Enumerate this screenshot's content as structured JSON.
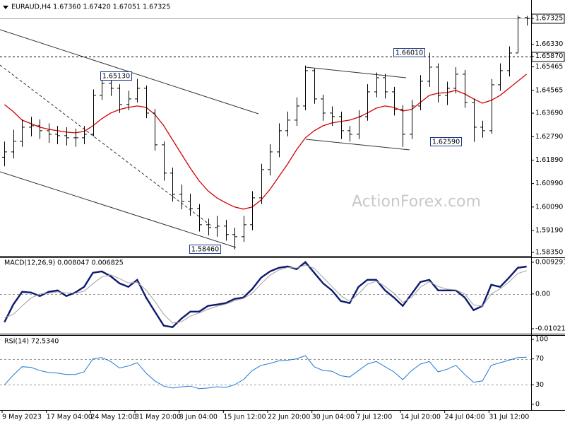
{
  "chart_data": [
    {
      "type": "ohlc",
      "title": "EURAUD,H4  1.67360 1.67420 1.67051 1.67325",
      "watermark": "ActionForex.com",
      "categories": [
        "9 May 2023",
        null,
        null,
        null,
        null,
        "17 May 04:00",
        null,
        null,
        null,
        null,
        "24 May 12:00",
        null,
        null,
        null,
        null,
        "31 May 20:00",
        null,
        null,
        null,
        null,
        "8 Jun 04:00",
        null,
        null,
        null,
        null,
        "15 Jun 12:00",
        null,
        null,
        null,
        null,
        "22 Jun 20:00",
        null,
        null,
        null,
        null,
        "30 Jun 04:00",
        null,
        null,
        null,
        null,
        "7 Jul 12:00",
        null,
        null,
        null,
        null,
        "14 Jul 20:00",
        null,
        null,
        null,
        null,
        "24 Jul 04:00",
        null,
        null,
        null,
        null,
        "31 Jul 12:00",
        null,
        null,
        null,
        null
      ],
      "open": [
        1.62,
        1.62204,
        1.6261,
        1.63152,
        1.63206,
        1.63017,
        1.62881,
        1.62827,
        1.62746,
        1.62746,
        1.62881,
        1.64372,
        1.64832,
        1.64643,
        1.64019,
        1.64236,
        1.64643,
        1.63694,
        1.62475,
        1.61391,
        1.60578,
        1.60307,
        1.60036,
        1.59412,
        1.59304,
        1.59358,
        1.59033,
        1.58952,
        1.59412,
        1.60442,
        1.61526,
        1.62204,
        1.63017,
        1.63423,
        1.63965,
        1.6532,
        1.64236,
        1.63694,
        1.63559,
        1.63017,
        1.62881,
        1.63559,
        1.64507,
        1.65049,
        1.64507,
        1.6383,
        1.62881,
        1.63965,
        1.64914,
        1.65456,
        1.64372,
        1.64643,
        1.65185,
        1.64101,
        1.63152,
        1.63017,
        1.64778,
        1.6532,
        1.65998,
        1.6736
      ],
      "high": [
        1.626,
        1.6305,
        1.6345,
        1.6355,
        1.6345,
        1.633,
        1.632,
        1.6315,
        1.631,
        1.632,
        1.646,
        1.6513,
        1.6505,
        1.648,
        1.6455,
        1.65,
        1.6475,
        1.6385,
        1.626,
        1.616,
        1.6095,
        1.606,
        1.602,
        1.5965,
        1.5975,
        1.596,
        1.593,
        1.5975,
        1.607,
        1.6175,
        1.625,
        1.633,
        1.6375,
        1.643,
        1.6552,
        1.654,
        1.644,
        1.6395,
        1.6375,
        1.632,
        1.638,
        1.648,
        1.6525,
        1.652,
        1.647,
        1.64,
        1.642,
        1.6515,
        1.6601,
        1.656,
        1.649,
        1.6545,
        1.6535,
        1.6425,
        1.634,
        1.65,
        1.656,
        1.6625,
        1.6744,
        1.6742
      ],
      "low": [
        1.6165,
        1.6195,
        1.624,
        1.628,
        1.627,
        1.6255,
        1.625,
        1.6245,
        1.624,
        1.625,
        1.628,
        1.642,
        1.6435,
        1.637,
        1.638,
        1.641,
        1.635,
        1.6225,
        1.611,
        1.603,
        1.6,
        1.5975,
        1.5915,
        1.59,
        1.5895,
        1.588,
        1.5846,
        1.5875,
        1.592,
        1.602,
        1.613,
        1.62,
        1.628,
        1.632,
        1.638,
        1.6405,
        1.634,
        1.632,
        1.627,
        1.626,
        1.627,
        1.634,
        1.643,
        1.6425,
        1.636,
        1.624,
        1.627,
        1.638,
        1.647,
        1.641,
        1.64,
        1.6445,
        1.639,
        1.6259,
        1.6275,
        1.629,
        1.6455,
        1.651,
        1.66,
        1.67051
      ],
      "close": [
        1.62204,
        1.6261,
        1.63152,
        1.63206,
        1.63017,
        1.62881,
        1.62827,
        1.62746,
        1.62746,
        1.62881,
        1.64372,
        1.64832,
        1.64643,
        1.64019,
        1.64236,
        1.64643,
        1.63694,
        1.62475,
        1.61391,
        1.60578,
        1.60307,
        1.60036,
        1.59412,
        1.59304,
        1.59358,
        1.59033,
        1.58952,
        1.59412,
        1.60442,
        1.61526,
        1.62204,
        1.63017,
        1.63423,
        1.63965,
        1.6532,
        1.64236,
        1.63694,
        1.63559,
        1.63017,
        1.62881,
        1.63559,
        1.64507,
        1.65049,
        1.64507,
        1.6383,
        1.62881,
        1.63965,
        1.64914,
        1.65456,
        1.64372,
        1.64643,
        1.65185,
        1.64101,
        1.63152,
        1.63017,
        1.64778,
        1.6532,
        1.65998,
        1.6736,
        1.67325
      ],
      "color": "#000000",
      "moving_average": {
        "color": "#d40000",
        "values": [
          1.64019,
          1.63748,
          1.63423,
          1.63288,
          1.63152,
          1.63071,
          1.63017,
          1.62963,
          1.62936,
          1.62989,
          1.63206,
          1.63477,
          1.63694,
          1.6383,
          1.63911,
          1.63965,
          1.63911,
          1.6364,
          1.63206,
          1.62664,
          1.62122,
          1.6158,
          1.61092,
          1.60713,
          1.60442,
          1.60253,
          1.6009,
          1.60009,
          1.6009,
          1.60361,
          1.60767,
          1.61255,
          1.61743,
          1.62285,
          1.62746,
          1.63017,
          1.63206,
          1.63315,
          1.63369,
          1.63423,
          1.63532,
          1.63694,
          1.63883,
          1.63965,
          1.63911,
          1.63776,
          1.6383,
          1.64101,
          1.64372,
          1.64453,
          1.6448,
          1.64561,
          1.64426,
          1.64236,
          1.64074,
          1.64182,
          1.64372,
          1.64643,
          1.64914,
          1.65185
        ]
      },
      "annotations": [
        "1.65130",
        "1.58460",
        "1.66010",
        "1.62590"
      ],
      "ylim": [
        1.58215,
        1.6803
      ],
      "yticks": [
        1.67325,
        {
          "value": 1.6633,
          "label": "1.66330"
        },
        {
          "value": 1.6587,
          "label": "1.65870"
        },
        1.65465,
        1.64565,
        {
          "value": 1.6369,
          "label": "1.63690"
        },
        {
          "value": 1.6279,
          "label": "1.62790"
        },
        {
          "value": 1.6189,
          "label": "1.61890"
        },
        {
          "value": 1.6099,
          "label": "1.60990"
        },
        {
          "value": 1.6009,
          "label": "1.60090"
        },
        {
          "value": 1.5919,
          "label": "1.59190"
        },
        {
          "value": 1.5835,
          "label": "1.58350"
        }
      ],
      "price_lines": [
        {
          "value": 1.67325,
          "style": "solid"
        },
        {
          "value": 1.6587,
          "style": "dashed"
        }
      ]
    },
    {
      "type": "line",
      "title": "MACD(12,26,9) 0.008047 0.006825",
      "series": [
        {
          "color": "#0d1a6e",
          "values": [
            -0.00828,
            -0.00311,
            0.00062,
            0.00041,
            -0.00062,
            0.00062,
            0.00104,
            -0.00062,
            0.00041,
            0.00207,
            0.00621,
            0.00662,
            0.00518,
            0.00311,
            0.00207,
            0.00414,
            -0.00104,
            -0.00518,
            -0.00932,
            -0.00973,
            -0.00725,
            -0.00518,
            -0.00518,
            -0.00352,
            -0.00311,
            -0.00269,
            -0.00145,
            -0.00104,
            0.00145,
            0.00476,
            0.00662,
            0.00766,
            0.00807,
            0.00725,
            0.00932,
            0.00621,
            0.00311,
            0.00104,
            -0.00207,
            -0.00269,
            0.00207,
            0.00414,
            0.00414,
            0.00104,
            -0.00104,
            -0.00352,
            0,
            0.00352,
            0.00414,
            0.00104,
            0.00104,
            0.00104,
            -0.00104,
            -0.00476,
            -0.00352,
            0.00269,
            0.00207,
            0.00476,
            0.00766,
            0.008047
          ]
        },
        {
          "color": "#a0a0a0",
          "values": [
            -0.007,
            -0.006,
            -0.0035,
            -0.0012,
            0,
            0.0002,
            0.0006,
            0.0003,
            0.0002,
            0.0008,
            0.003,
            0.005,
            0.0056,
            0.0045,
            0.0032,
            0.0034,
            0.0012,
            -0.0022,
            -0.006,
            -0.0085,
            -0.0082,
            -0.0065,
            -0.0056,
            -0.0045,
            -0.0036,
            -0.003,
            -0.002,
            -0.0013,
            0.0002,
            0.003,
            0.0055,
            0.007,
            0.0078,
            0.0076,
            0.0085,
            0.0075,
            0.0048,
            0.0022,
            -0.0005,
            -0.0022,
            0,
            0.0028,
            0.0038,
            0.0022,
            0.0002,
            -0.0025,
            -0.001,
            0.002,
            0.0036,
            0.0022,
            0.0014,
            0.0012,
            0,
            -0.0032,
            -0.0036,
            0,
            0.0015,
            0.0035,
            0.006,
            0.006825
          ]
        }
      ],
      "ylim": [
        -0.01166,
        0.01053
      ],
      "yticks": [
        0.009291,
        {
          "value": 0,
          "label": "0.00"
        },
        -0.010211
      ],
      "reference_lines": [
        0
      ]
    },
    {
      "type": "line",
      "title": "RSI(14) 72.5340",
      "series": [
        {
          "color": "#1e78d7",
          "values": [
            30,
            45,
            58,
            57,
            52,
            49,
            48,
            46,
            46,
            50,
            70,
            72,
            66,
            56,
            59,
            64,
            48,
            36,
            28,
            25,
            27,
            28,
            24,
            25,
            27,
            26,
            30,
            38,
            52,
            60,
            63,
            67,
            68,
            70,
            75,
            58,
            52,
            51,
            44,
            42,
            52,
            62,
            66,
            58,
            50,
            38,
            52,
            62,
            66,
            50,
            54,
            60,
            46,
            34,
            36,
            60,
            64,
            68,
            72,
            72.534
          ]
        }
      ],
      "ylim": [
        -8.9,
        105.6
      ],
      "yticks": [
        100,
        70,
        30,
        0
      ],
      "reference_lines": [
        70,
        30
      ]
    }
  ]
}
